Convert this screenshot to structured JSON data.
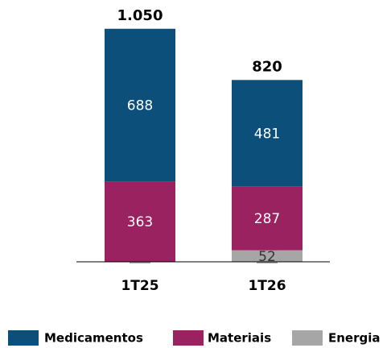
{
  "chart_data": {
    "type": "stacked_bar",
    "categories": [
      "1T25",
      "1T26"
    ],
    "series": [
      {
        "name": "Medicamentos",
        "color": "#0b4f7a",
        "values": [
          688,
          481
        ]
      },
      {
        "name": "Materiais",
        "color": "#9b2260",
        "values": [
          363,
          287
        ]
      },
      {
        "name": "Energia",
        "color": "#a6a6a6",
        "values": [
          0,
          52
        ]
      }
    ],
    "totals": {
      "values": [
        1050,
        820
      ],
      "value_labels": [
        "1.050",
        "820"
      ]
    }
  }
}
